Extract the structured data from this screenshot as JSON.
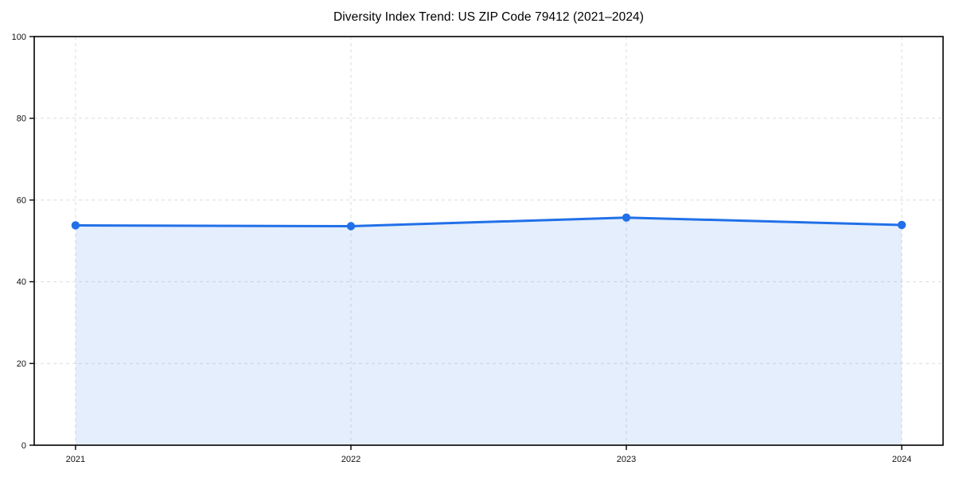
{
  "chart_data": {
    "type": "line",
    "title": "Diversity Index Trend: US ZIP Code 79412 (2021–2024)",
    "categories": [
      "2021",
      "2022",
      "2023",
      "2024"
    ],
    "series": [
      {
        "name": "Diversity Index",
        "values": [
          53.8,
          53.6,
          55.7,
          53.9
        ]
      }
    ],
    "xlabel": "",
    "ylabel": "",
    "ylim": [
      0,
      100
    ],
    "yticks": [
      0,
      20,
      40,
      60,
      80,
      100
    ],
    "grid": true,
    "grid_style": "dashed",
    "legend": "none",
    "area_fill": true,
    "marker": "circle",
    "colors": {
      "line": "#2170e8",
      "fill": "#2170e8",
      "grid": "#dcdcdc",
      "axis": "#000000",
      "tick_text": "#111111",
      "background": "#ffffff"
    }
  }
}
